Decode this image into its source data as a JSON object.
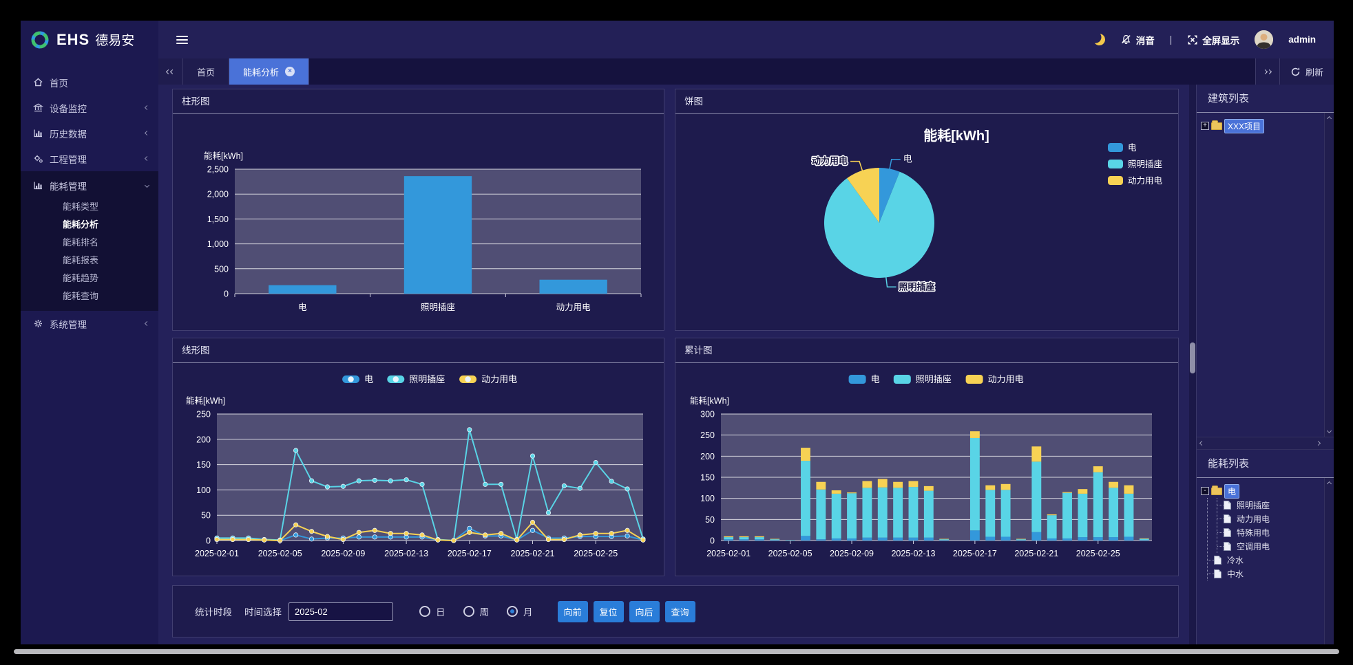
{
  "brand": {
    "logo_text": "EHS",
    "logo_name": "德易安"
  },
  "header": {
    "mute_label": "消音",
    "divider": "|",
    "fullscreen_label": "全屏显示",
    "username": "admin",
    "icons": {
      "dark_mode": "moon-icon",
      "mute": "bell-mute-icon",
      "fullscreen": "fullscreen-icon",
      "user": "avatar"
    }
  },
  "tabbar": {
    "tabs": [
      {
        "label": "首页",
        "active": false,
        "closable": false
      },
      {
        "label": "能耗分析",
        "active": true,
        "closable": true
      }
    ],
    "refresh_label": "刷新",
    "icons": {
      "scroll_left": "double-chevron-left-icon",
      "scroll_right": "double-chevron-right-icon",
      "refresh": "refresh-icon",
      "close": "close-icon"
    }
  },
  "sidebar": {
    "items": [
      {
        "label": "首页",
        "icon": "home-icon",
        "chevron": "none",
        "children": []
      },
      {
        "label": "设备监控",
        "icon": "bank-icon",
        "chevron": "left",
        "children": []
      },
      {
        "label": "历史数据",
        "icon": "bar-chart-icon",
        "chevron": "left",
        "children": []
      },
      {
        "label": "工程管理",
        "icon": "gears-icon",
        "chevron": "left",
        "children": []
      },
      {
        "label": "能耗管理",
        "icon": "bar-chart-icon",
        "chevron": "down",
        "expanded": true,
        "children": [
          "能耗类型",
          "能耗分析",
          "能耗排名",
          "能耗报表",
          "能耗趋势",
          "能耗查询"
        ],
        "active_child": "能耗分析"
      },
      {
        "label": "系统管理",
        "icon": "gear-icon",
        "chevron": "left",
        "children": []
      }
    ]
  },
  "panels": {
    "bar_title": "柱形图",
    "pie_title": "饼图",
    "line_title": "线形图",
    "stack_title": "累计图"
  },
  "right_panel": {
    "building_title": "建筑列表",
    "building_tree": [
      {
        "label": "XXX项目",
        "icon": "folder-icon",
        "expander": "+",
        "selected": true
      }
    ],
    "energy_title": "能耗列表",
    "energy_tree": {
      "root": {
        "label": "电",
        "icon": "folder-icon",
        "expander": "-",
        "selected": true
      },
      "children": [
        "照明插座",
        "动力用电",
        "特殊用电",
        "空调用电"
      ],
      "siblings": [
        "冷水",
        "中水"
      ]
    }
  },
  "controls": {
    "period_label": "统计时段",
    "time_label": "时间选择",
    "time_value": "2025-02",
    "radios": [
      {
        "label": "日",
        "checked": false
      },
      {
        "label": "周",
        "checked": false
      },
      {
        "label": "月",
        "checked": true
      }
    ],
    "buttons": [
      "向前",
      "复位",
      "向后",
      "查询"
    ]
  },
  "colors": {
    "blue": "#3398db",
    "cyan": "#59d4e6",
    "yellow": "#f7d254",
    "plot_bg": "#504e74",
    "accent_tab": "#4a72d8"
  },
  "chart_data": [
    {
      "id": "bar",
      "type": "bar",
      "title": "柱形图",
      "axis_title": "能耗[kWh]",
      "categories": [
        "电",
        "照明插座",
        "动力用电"
      ],
      "values": [
        170,
        2360,
        280
      ],
      "ylim": [
        0,
        2500
      ],
      "yticks": [
        0,
        500,
        1000,
        1500,
        2000,
        2500
      ],
      "series_color": "#3398db",
      "grid": true
    },
    {
      "id": "pie",
      "type": "pie",
      "title": "能耗[kWh]",
      "legend_position": "right",
      "slices": [
        {
          "name": "电",
          "value": 170,
          "color": "#3398db"
        },
        {
          "name": "照明插座",
          "value": 2360,
          "color": "#59d4e6"
        },
        {
          "name": "动力用电",
          "value": 280,
          "color": "#f7d254"
        }
      ]
    },
    {
      "id": "line",
      "type": "line",
      "title": "线形图",
      "axis_title": "能耗[kWh]",
      "ylim": [
        0,
        250
      ],
      "yticks": [
        0,
        50,
        100,
        150,
        200,
        250
      ],
      "legend_position": "top",
      "grid": true,
      "x": [
        "2025-02-01",
        "2025-02-02",
        "2025-02-03",
        "2025-02-04",
        "2025-02-05",
        "2025-02-06",
        "2025-02-07",
        "2025-02-08",
        "2025-02-09",
        "2025-02-10",
        "2025-02-11",
        "2025-02-12",
        "2025-02-13",
        "2025-02-14",
        "2025-02-15",
        "2025-02-16",
        "2025-02-17",
        "2025-02-18",
        "2025-02-19",
        "2025-02-20",
        "2025-02-21",
        "2025-02-22",
        "2025-02-23",
        "2025-02-24",
        "2025-02-25",
        "2025-02-26",
        "2025-02-27",
        "2025-02-28"
      ],
      "x_label_indices": [
        0,
        4,
        8,
        12,
        16,
        20,
        24
      ],
      "series": [
        {
          "name": "电",
          "color": "#3398db",
          "values": [
            3,
            3,
            3,
            1,
            0,
            11,
            3,
            5,
            5,
            7,
            7,
            7,
            7,
            7,
            1,
            0,
            24,
            9,
            9,
            1,
            20,
            5,
            5,
            8,
            8,
            8,
            9,
            1
          ]
        },
        {
          "name": "照明插座",
          "color": "#59d4e6",
          "values": [
            5,
            5,
            5,
            2,
            1,
            178,
            118,
            106,
            107,
            118,
            119,
            118,
            120,
            111,
            2,
            0,
            219,
            111,
            111,
            2,
            167,
            55,
            108,
            103,
            154,
            117,
            102,
            3
          ]
        },
        {
          "name": "动力用电",
          "color": "#f7d254",
          "values": [
            2,
            2,
            2,
            1,
            0,
            31,
            18,
            8,
            2,
            16,
            20,
            14,
            14,
            11,
            1,
            0,
            16,
            11,
            14,
            1,
            36,
            2,
            2,
            11,
            14,
            14,
            20,
            1
          ]
        }
      ]
    },
    {
      "id": "stack",
      "type": "bar-stacked",
      "title": "累计图",
      "axis_title": "能耗[kWh]",
      "ylim": [
        0,
        300
      ],
      "yticks": [
        0,
        50,
        100,
        150,
        200,
        250,
        300
      ],
      "legend_position": "top",
      "grid": true,
      "x": [
        "2025-02-01",
        "2025-02-02",
        "2025-02-03",
        "2025-02-04",
        "2025-02-05",
        "2025-02-06",
        "2025-02-07",
        "2025-02-08",
        "2025-02-09",
        "2025-02-10",
        "2025-02-11",
        "2025-02-12",
        "2025-02-13",
        "2025-02-14",
        "2025-02-15",
        "2025-02-16",
        "2025-02-17",
        "2025-02-18",
        "2025-02-19",
        "2025-02-20",
        "2025-02-21",
        "2025-02-22",
        "2025-02-23",
        "2025-02-24",
        "2025-02-25",
        "2025-02-26",
        "2025-02-27",
        "2025-02-28"
      ],
      "x_label_indices": [
        0,
        4,
        8,
        12,
        16,
        20,
        24
      ],
      "series": [
        {
          "name": "电",
          "color": "#3398db",
          "values": [
            3,
            3,
            3,
            1,
            0,
            11,
            3,
            5,
            5,
            7,
            7,
            7,
            7,
            7,
            1,
            0,
            24,
            9,
            9,
            1,
            20,
            5,
            5,
            8,
            8,
            8,
            9,
            1
          ]
        },
        {
          "name": "照明插座",
          "color": "#59d4e6",
          "values": [
            5,
            5,
            5,
            2,
            1,
            178,
            118,
            106,
            107,
            118,
            119,
            118,
            120,
            111,
            2,
            0,
            219,
            111,
            111,
            2,
            167,
            55,
            108,
            103,
            154,
            117,
            102,
            3
          ]
        },
        {
          "name": "动力用电",
          "color": "#f7d254",
          "values": [
            2,
            2,
            2,
            1,
            0,
            31,
            18,
            8,
            2,
            16,
            20,
            14,
            14,
            11,
            1,
            0,
            16,
            11,
            14,
            1,
            36,
            2,
            2,
            11,
            14,
            14,
            20,
            1
          ]
        }
      ]
    }
  ]
}
